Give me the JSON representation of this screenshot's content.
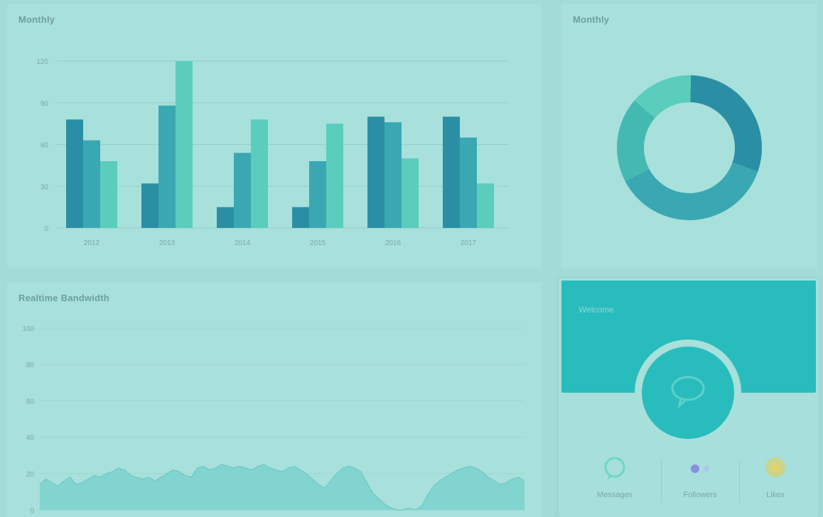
{
  "panels": {
    "bar_title": "Monthly",
    "donut_title": "Monthly",
    "area_title": "Realtime Bandwidth"
  },
  "profile": {
    "banner_label": "Welcome",
    "stats": [
      {
        "label": "Messages",
        "icon": "chat-icon"
      },
      {
        "label": "Followers",
        "icon": "users-icon"
      },
      {
        "label": "Likes",
        "icon": "star-icon"
      }
    ]
  },
  "colors": {
    "series_1": "#2a8fa4",
    "series_2": "#3aa8b3",
    "series_3": "#5acdbc",
    "banner": "#29bcbd",
    "area_fill": "#7dd3cf"
  },
  "chart_data": [
    {
      "type": "bar",
      "title": "",
      "categories": [
        "2012",
        "2013",
        "2014",
        "2015",
        "2016",
        "2017"
      ],
      "series": [
        {
          "values": [
            78,
            32,
            15,
            15,
            80,
            80
          ]
        },
        {
          "values": [
            63,
            88,
            54,
            48,
            76,
            65
          ]
        },
        {
          "values": [
            48,
            120,
            78,
            75,
            50,
            32
          ]
        }
      ],
      "yticks": [
        0,
        30,
        60,
        90,
        120
      ],
      "ylim": [
        0,
        120
      ],
      "grid": true
    },
    {
      "type": "pie",
      "donut": true,
      "title": "",
      "values": [
        30,
        37,
        19,
        14
      ]
    },
    {
      "type": "area",
      "title": "",
      "yticks": [
        0,
        20,
        40,
        60,
        80,
        100
      ],
      "ylim": [
        0,
        100
      ],
      "grid": true,
      "values": [
        14,
        17,
        15,
        13,
        16,
        18,
        14,
        15,
        17,
        19,
        18,
        20,
        21,
        23,
        22,
        19,
        18,
        17,
        18,
        16,
        18,
        20,
        22,
        21,
        19,
        18,
        23,
        24,
        22,
        23,
        25,
        24,
        23,
        24,
        23,
        22,
        24,
        25,
        23,
        22,
        21,
        23,
        24,
        22,
        20,
        17,
        14,
        12,
        16,
        20,
        23,
        24,
        23,
        21,
        15,
        9,
        6,
        3,
        1,
        0,
        0,
        1,
        0,
        2,
        8,
        13,
        16,
        18,
        20,
        22,
        23,
        24,
        23,
        21,
        18,
        16,
        14,
        15,
        17,
        18,
        16
      ]
    }
  ]
}
